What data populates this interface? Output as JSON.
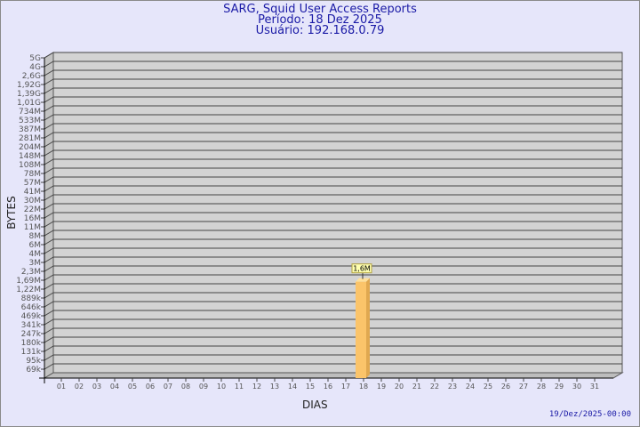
{
  "chart_data": {
    "type": "bar",
    "title": "SARG, Squid User Access Reports",
    "subtitle_period": "Período: 18 Dez 2025",
    "subtitle_user": "Usuário: 192.168.0.79",
    "xlabel": "DIAS",
    "ylabel": "BYTES",
    "y_scale": "log",
    "grid": true,
    "y_ticks": [
      "5G",
      "4G",
      "2,6G",
      "1,92G",
      "1,39G",
      "1,01G",
      "734M",
      "533M",
      "387M",
      "281M",
      "204M",
      "148M",
      "108M",
      "78M",
      "57M",
      "41M",
      "30M",
      "22M",
      "16M",
      "11M",
      "8M",
      "6M",
      "4M",
      "3M",
      "2,3M",
      "1,69M",
      "1,22M",
      "889k",
      "646k",
      "469k",
      "341k",
      "247k",
      "180k",
      "131k",
      "95k",
      "69k"
    ],
    "categories": [
      "01",
      "02",
      "03",
      "04",
      "05",
      "06",
      "07",
      "08",
      "09",
      "10",
      "11",
      "12",
      "13",
      "14",
      "15",
      "16",
      "17",
      "18",
      "19",
      "20",
      "21",
      "22",
      "23",
      "24",
      "25",
      "26",
      "27",
      "28",
      "29",
      "30",
      "31"
    ],
    "bars": [
      {
        "day": "18",
        "value_bytes": 1600000,
        "label": "1,6M"
      }
    ],
    "colors": {
      "bar": "#fbc46a",
      "bar_side": "#e0a850",
      "plot_bg": "#d3d3d3",
      "title": "#1a1aa6",
      "background": "#e6e6fa"
    }
  },
  "footer": {
    "timestamp": "19/Dez/2025-00:00"
  }
}
